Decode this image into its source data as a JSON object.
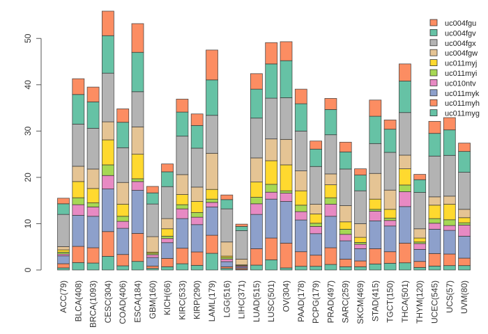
{
  "chart_data": {
    "type": "bar",
    "stacked": true,
    "title": "",
    "xlabel": "",
    "ylabel": "",
    "ylim": [
      0,
      56
    ],
    "yticks": [
      0,
      10,
      20,
      30,
      40,
      50
    ],
    "grid": false,
    "legend_position": "top-right",
    "categories": [
      "ACC(79)",
      "BLCA(408)",
      "BRCA(1093)",
      "CESC(304)",
      "COAD(406)",
      "ESCA(184)",
      "GBM(160)",
      "KICH(66)",
      "KIRC(533)",
      "KIRP(290)",
      "LAML(179)",
      "LGG(516)",
      "LIHC(371)",
      "LUAD(515)",
      "LUSC(501)",
      "OV(304)",
      "PAAD(178)",
      "PCPG(179)",
      "PRAD(497)",
      "SARC(259)",
      "SKCM(469)",
      "STAD(415)",
      "TGCT(150)",
      "THCA(501)",
      "THYM(120)",
      "UCEC(545)",
      "UCS(57)",
      "UVM(80)"
    ],
    "series": [
      {
        "name": "uc011myg",
        "color": "#66c2a5",
        "values": [
          0.45,
          1.6,
          1.5,
          2.95,
          0.9,
          1.85,
          0.35,
          0.7,
          1.35,
          1.0,
          3.6,
          0.35,
          0.1,
          1.05,
          2.2,
          0.45,
          0.8,
          0.8,
          1.2,
          0.7,
          0.7,
          1.3,
          1.45,
          1.55,
          0.55,
          0.85,
          0.95,
          0.95
        ]
      },
      {
        "name": "uc011myh",
        "color": "#fc8d62",
        "values": [
          0.9,
          3.5,
          3.3,
          5.35,
          2.45,
          6.05,
          0.5,
          1.8,
          3.35,
          2.9,
          3.9,
          0.35,
          0.25,
          3.55,
          4.7,
          5.35,
          3.15,
          2.4,
          3.6,
          1.65,
          1.25,
          3.3,
          2.5,
          4.25,
          1.3,
          2.7,
          2.5,
          1.6
        ]
      },
      {
        "name": "uc011myk",
        "color": "#8da0cb",
        "values": [
          1.7,
          6.7,
          6.8,
          9.2,
          5.65,
          9.3,
          1.85,
          3.4,
          6.4,
          5.9,
          6.1,
          1.1,
          0.25,
          7.4,
          8.4,
          9.0,
          6.85,
          4.65,
          6.8,
          3.95,
          2.65,
          6.0,
          5.55,
          7.9,
          2.6,
          5.25,
          5.1,
          4.75
        ]
      },
      {
        "name": "uc010ntv",
        "color": "#e78ac3",
        "values": [
          0.4,
          2.3,
          2.0,
          2.9,
          1.5,
          1.9,
          0.6,
          0.9,
          2.1,
          1.6,
          1.0,
          0.55,
          0.25,
          2.3,
          1.5,
          1.8,
          1.8,
          1.55,
          2.6,
          1.4,
          0.95,
          2.1,
          1.2,
          3.2,
          1.25,
          1.3,
          1.05,
          2.4
        ]
      },
      {
        "name": "uc011myi",
        "color": "#a6d854",
        "values": [
          0.4,
          1.5,
          0.9,
          2.3,
          1.1,
          0.6,
          0.3,
          0.5,
          0.9,
          1.0,
          0.7,
          0.35,
          0.1,
          1.4,
          1.7,
          0.5,
          1.4,
          0.7,
          1.4,
          1.1,
          0.4,
          0.4,
          0.5,
          1.45,
          0.35,
          1.0,
          1.25,
          0.5
        ]
      },
      {
        "name": "uc011myj",
        "color": "#ffd92f",
        "values": [
          0.5,
          3.5,
          3.1,
          5.4,
          2.6,
          5.3,
          0.25,
          1.6,
          2.2,
          2.4,
          2.1,
          0.3,
          0.15,
          3.3,
          5.1,
          5.6,
          3.1,
          2.0,
          2.8,
          1.6,
          1.1,
          2.2,
          1.9,
          3.5,
          0.85,
          2.9,
          3.35,
          1.1
        ]
      },
      {
        "name": "uc004fgw",
        "color": "#e5c494",
        "values": [
          0.7,
          3.3,
          4.2,
          3.9,
          4.7,
          5.9,
          3.35,
          2.2,
          4.3,
          3.1,
          7.8,
          3.05,
          1.25,
          5.2,
          4.7,
          5.5,
          4.3,
          2.1,
          2.35,
          3.5,
          2.95,
          5.55,
          4.15,
          2.95,
          2.0,
          1.8,
          1.75,
          1.8
        ]
      },
      {
        "name": "uc004fgx",
        "color": "#b3b3b3",
        "values": [
          6.95,
          9.1,
          8.8,
          10.5,
          7.5,
          7.6,
          7.05,
          6.9,
          8.3,
          8.4,
          8.2,
          7.15,
          6.15,
          8.6,
          8.8,
          9.0,
          8.6,
          8.15,
          8.45,
          7.9,
          7.1,
          6.45,
          8.15,
          9.2,
          7.85,
          8.8,
          8.8,
          8.0
        ]
      },
      {
        "name": "uc004fgv",
        "color": "#66c2a5",
        "values": [
          2.3,
          6.4,
          5.7,
          8.1,
          5.5,
          8.5,
          2.4,
          3.2,
          5.2,
          4.9,
          7.65,
          2.0,
          0.9,
          6.25,
          7.4,
          8.0,
          5.9,
          3.75,
          5.45,
          3.7,
          3.4,
          5.9,
          5.0,
          6.8,
          2.75,
          4.9,
          5.5,
          4.5
        ]
      },
      {
        "name": "uc004fgu",
        "color": "#fc8d62",
        "values": [
          1.2,
          3.4,
          3.2,
          5.3,
          2.9,
          6.2,
          1.4,
          1.7,
          2.8,
          2.5,
          6.45,
          1.0,
          0.5,
          3.35,
          4.6,
          4.1,
          3.15,
          1.75,
          2.4,
          2.1,
          1.35,
          3.5,
          2.0,
          3.7,
          1.15,
          2.6,
          2.65,
          1.8
        ]
      }
    ],
    "legend_order": [
      "uc004fgu",
      "uc004fgv",
      "uc004fgx",
      "uc004fgw",
      "uc011myj",
      "uc011myi",
      "uc010ntv",
      "uc011myk",
      "uc011myh",
      "uc011myg"
    ]
  }
}
